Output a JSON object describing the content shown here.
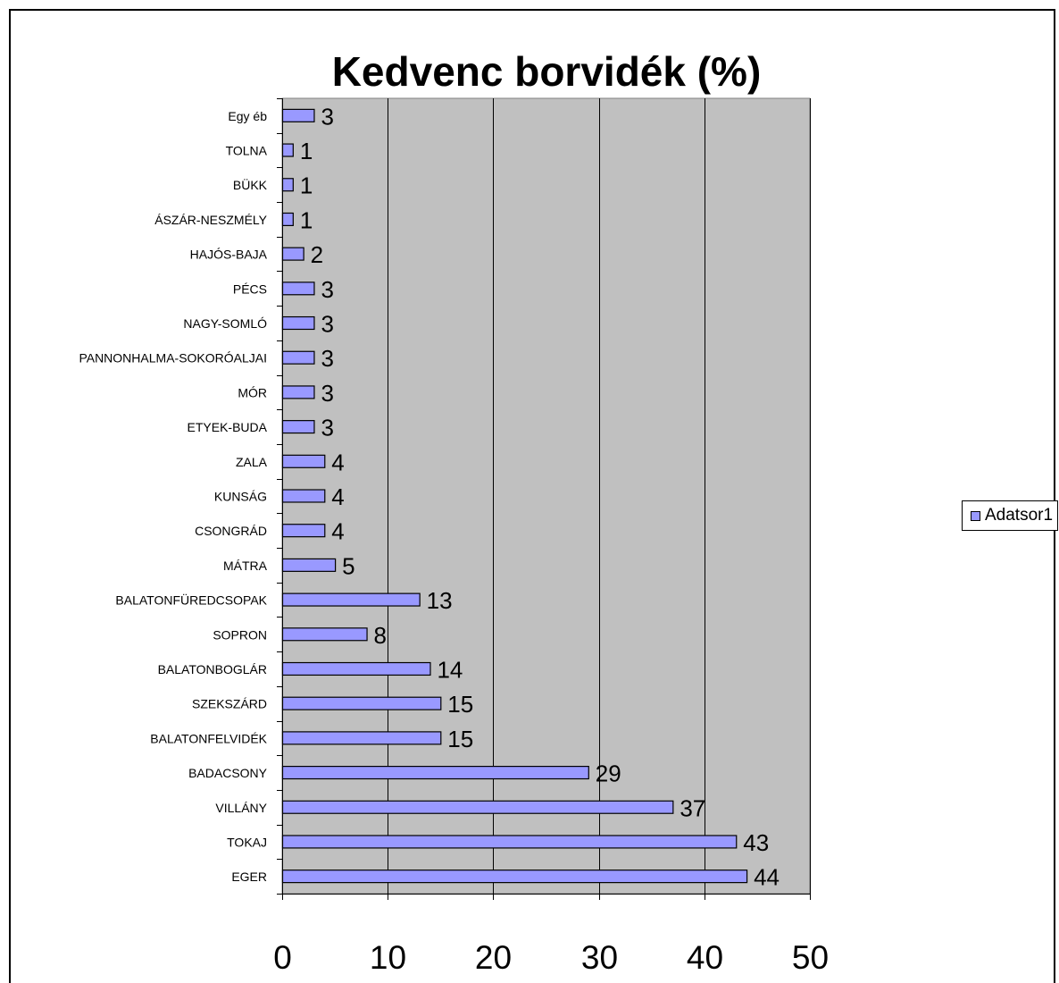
{
  "chart_data": {
    "type": "bar",
    "orientation": "horizontal",
    "title": "Kedvenc borvidék (%)",
    "categories": [
      "EGER",
      "TOKAJ",
      "VILLÁNY",
      "BADACSONY",
      "BALATONFELVIDÉK",
      "SZEKSZÁRD",
      "BALATONBOGLÁR",
      "SOPRON",
      "BALATONFÜREDCSOPAK",
      "MÁTRA",
      "CSONGRÁD",
      "KUNSÁG",
      "ZALA",
      "ETYEK-BUDA",
      "MÓR",
      "PANNONHALMA-SOKORÓALJAI",
      "NAGY-SOMLÓ",
      "PÉCS",
      "HAJÓS-BAJA",
      "ÁSZÁR-NESZMÉLY",
      "BÜKK",
      "TOLNA",
      "Egy éb"
    ],
    "series": [
      {
        "name": "Adatsor1",
        "values": [
          44,
          43,
          37,
          29,
          15,
          15,
          14,
          8,
          13,
          5,
          4,
          4,
          4,
          3,
          3,
          3,
          3,
          3,
          2,
          1,
          1,
          1,
          3
        ]
      }
    ],
    "xlim": [
      0,
      50
    ],
    "x_ticks": [
      "0",
      "10",
      "20",
      "30",
      "40",
      "50"
    ],
    "grid": true,
    "legend_position": "right",
    "colors": {
      "bar_fill": "#9999ff",
      "plot_background": "#c0c0c0",
      "gridline": "#000000"
    }
  }
}
